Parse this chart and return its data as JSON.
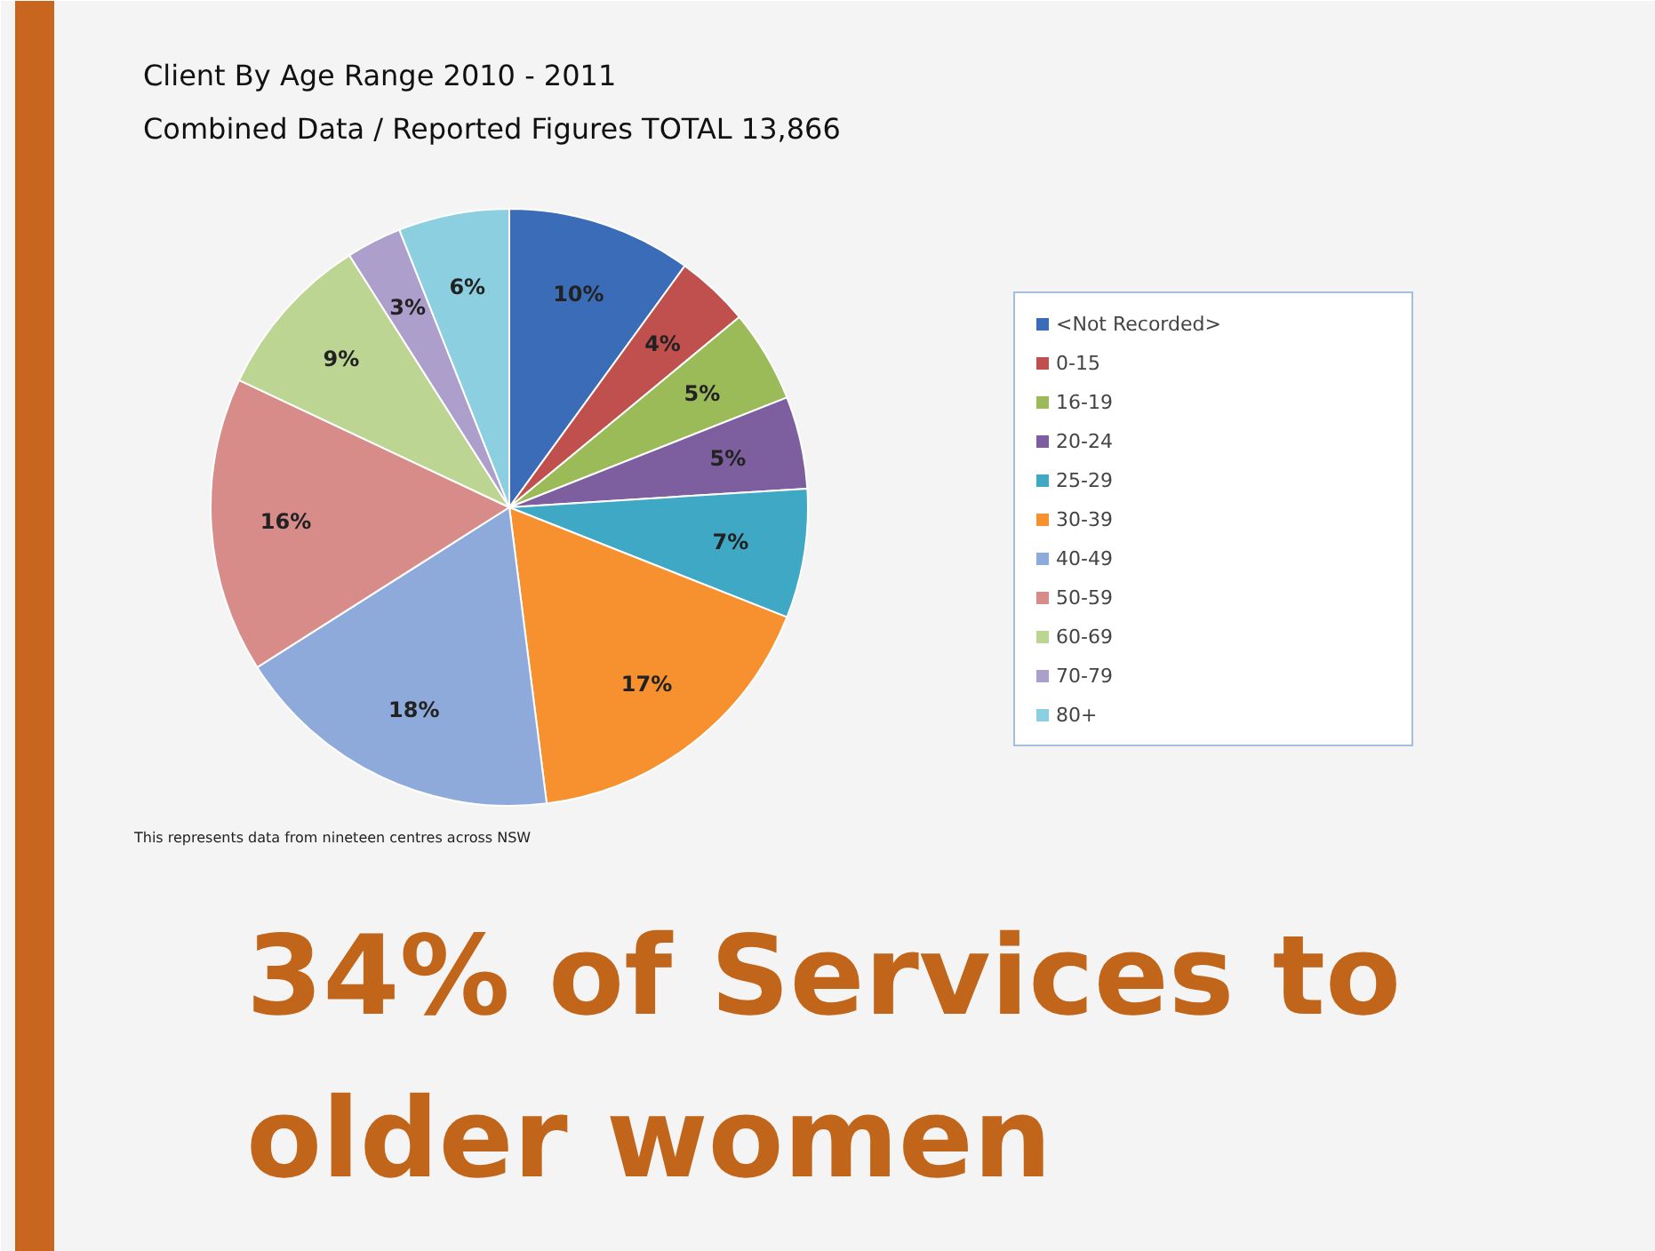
{
  "chart_data": {
    "type": "pie",
    "title": "Client By Age Range 2010 - 2011",
    "subtitle": "Combined Data / Reported Figures  TOTAL 13,866",
    "categories": [
      "<Not Recorded>",
      "0-15",
      "16-19",
      "20-24",
      "25-29",
      "30-39",
      "40-49",
      "50-59",
      "60-69",
      "70-79",
      "80+"
    ],
    "values": [
      10,
      4,
      5,
      5,
      7,
      17,
      18,
      16,
      9,
      3,
      6
    ],
    "value_labels": [
      "10%",
      "4%",
      "5%",
      "5%",
      "7%",
      "17%",
      "18%",
      "16%",
      "9%",
      "3%",
      "6%"
    ],
    "colors": [
      "#3b6cb7",
      "#c0504d",
      "#9bbb59",
      "#7d5fa0",
      "#3fa8c4",
      "#f7902f",
      "#8eaadb",
      "#d88c8a",
      "#bcd593",
      "#ad9fcc",
      "#8ccfe0"
    ],
    "legend": "right",
    "annotations": [
      "This represents data from nineteen centres across NSW",
      "34% of Services to\nolder women"
    ]
  }
}
